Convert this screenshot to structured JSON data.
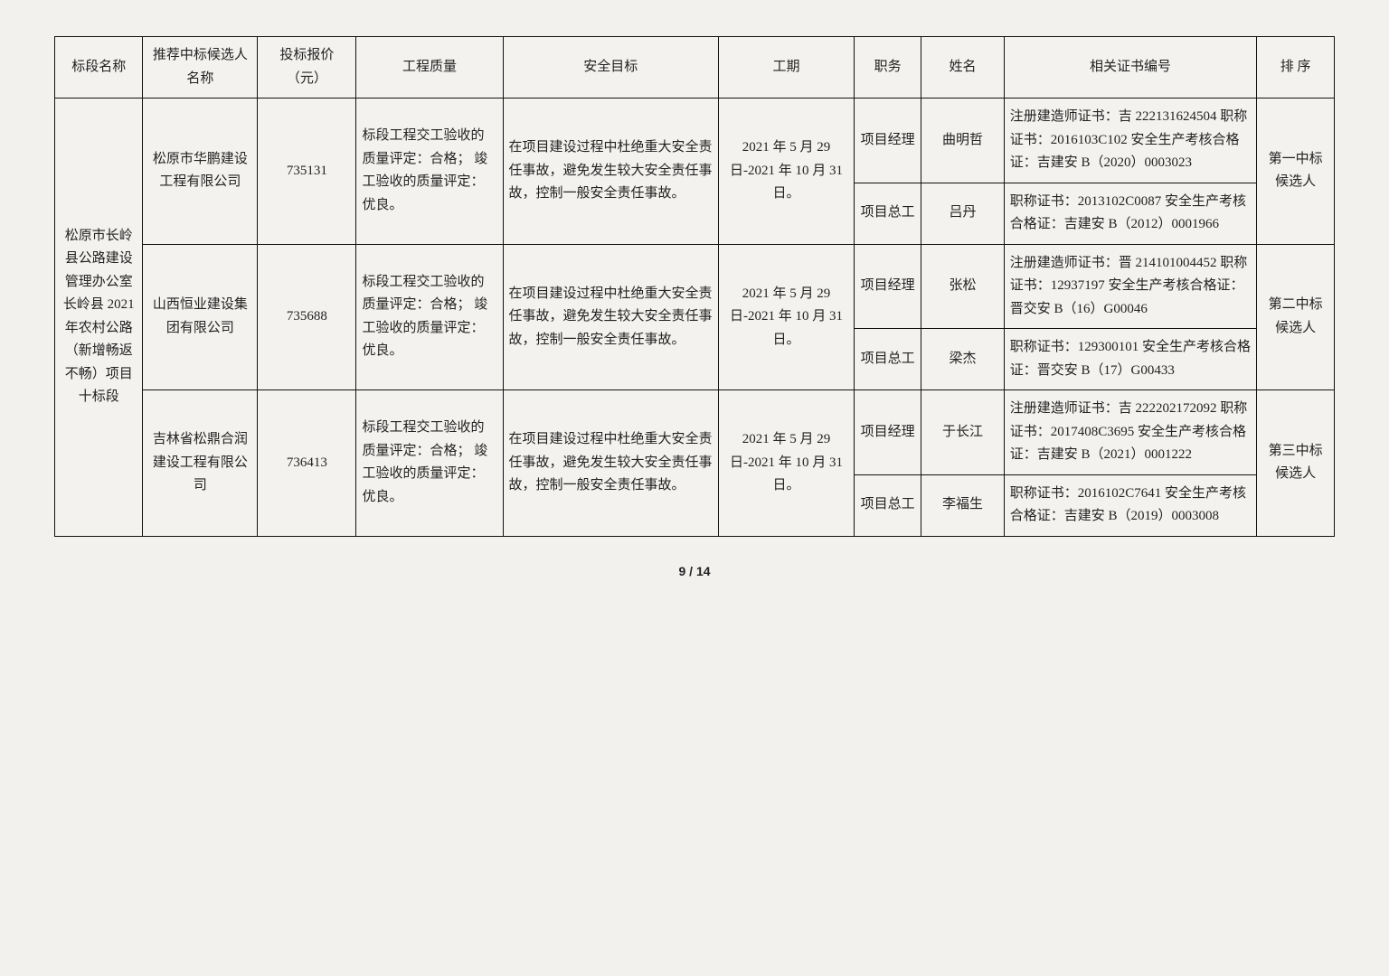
{
  "headers": {
    "section": "标段名称",
    "candidate": "推荐中标候选人名称",
    "price": "投标报价（元）",
    "quality": "工程质量",
    "safety": "安全目标",
    "period": "工期",
    "role": "职务",
    "name": "姓名",
    "cert": "相关证书编号",
    "rank": "排 序"
  },
  "section_name": "松原市长岭县公路建设管理办公室长岭县 2021 年农村公路（新增畅返不畅）项目十标段",
  "bidders": [
    {
      "candidate": "松原市华鹏建设工程有限公司",
      "price": "735131",
      "quality": "标段工程交工验收的质量评定：合格；\n竣工验收的质量评定：优良。",
      "safety": "在项目建设过程中杜绝重大安全责任事故，避免发生较大安全责任事故，控制一般安全责任事故。",
      "period": "2021 年 5 月 29 日-2021 年 10 月 31 日。",
      "rank": "第一中标候选人",
      "people": [
        {
          "role": "项目经理",
          "name": "曲明哲",
          "cert": "注册建造师证书：吉 222131624504\n职称证书：2016103C102\n安全生产考核合格证：吉建安 B（2020）0003023"
        },
        {
          "role": "项目总工",
          "name": "吕丹",
          "cert": "职称证书：2013102C0087\n安全生产考核合格证：吉建安 B（2012）0001966"
        }
      ]
    },
    {
      "candidate": "山西恒业建设集团有限公司",
      "price": "735688",
      "quality": "标段工程交工验收的质量评定：合格；\n竣工验收的质量评定：优良。",
      "safety": "在项目建设过程中杜绝重大安全责任事故，避免发生较大安全责任事故，控制一般安全责任事故。",
      "period": "2021 年 5 月 29 日-2021 年 10 月 31 日。",
      "rank": "第二中标候选人",
      "people": [
        {
          "role": "项目经理",
          "name": "张松",
          "cert": "注册建造师证书：晋 214101004452\n职称证书：12937197\n安全生产考核合格证：晋交安 B（16）G00046"
        },
        {
          "role": "项目总工",
          "name": "梁杰",
          "cert": "职称证书：129300101\n安全生产考核合格证：晋交安 B（17）G00433"
        }
      ]
    },
    {
      "candidate": "吉林省松鼎合润建设工程有限公司",
      "price": "736413",
      "quality": "标段工程交工验收的质量评定：合格；\n竣工验收的质量评定：优良。",
      "safety": "在项目建设过程中杜绝重大安全责任事故，避免发生较大安全责任事故，控制一般安全责任事故。",
      "period": "2021 年 5 月 29 日-2021 年 10 月 31 日。",
      "rank": "第三中标候选人",
      "people": [
        {
          "role": "项目经理",
          "name": "于长江",
          "cert": "注册建造师证书：吉 222202172092\n职称证书：2017408C3695\n安全生产考核合格证：吉建安 B（2021）0001222"
        },
        {
          "role": "项目总工",
          "name": "李福生",
          "cert": "职称证书：2016102C7641\n安全生产考核合格证：吉建安 B（2019）0003008"
        }
      ]
    }
  ],
  "page": "9 / 14",
  "style": {
    "bg": "#f3f1ee",
    "border": "#111",
    "font": "SimSun",
    "fontsize_pt": 11,
    "lineheight": 1.7
  }
}
